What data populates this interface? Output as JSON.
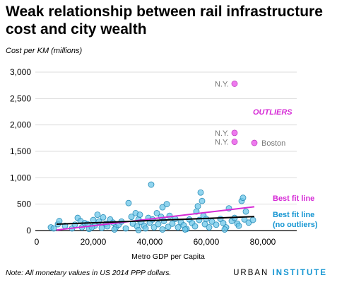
{
  "header": {
    "title": "Weak relationship between rail infrastructure cost and city wealth",
    "note": "Note: All monetary values in US 2014 PPP dollars.",
    "brand_part1": "URBAN",
    "brand_part2": "INSTITUTE"
  },
  "colors": {
    "points": "#6cc7ea",
    "points_stroke": "#2a8db8",
    "outliers": "#ee7aee",
    "outliers_stroke": "#c03ec0",
    "fit_all": "#d62bd6",
    "fit_no_outliers": "#000000",
    "axis_text": "#000000",
    "grid": "#dddddd"
  },
  "chart_data": {
    "type": "scatter",
    "title": "Weak relationship between rail infrastructure cost and city wealth",
    "xlabel": "Metro GDP per Capita",
    "ylabel": "Cost per KM (millions)",
    "xlim": [
      0,
      85000
    ],
    "ylim": [
      0,
      3000
    ],
    "x_ticks": [
      0,
      20000,
      40000,
      60000,
      80000
    ],
    "x_tick_labels": [
      "0",
      "20,000",
      "40,000",
      "60,000",
      "80,000"
    ],
    "y_ticks": [
      0,
      500,
      1000,
      1500,
      2000,
      2500,
      3000
    ],
    "y_tick_labels": [
      "0",
      "500",
      "1,000",
      "1,500",
      "2,000",
      "2,500",
      "3,000"
    ],
    "grid": "horizontal",
    "outliers_label": "OUTLIERS",
    "series": [
      {
        "kind": "points",
        "points": [
          [
            5000,
            60
          ],
          [
            7500,
            120
          ],
          [
            8000,
            180
          ],
          [
            10000,
            90
          ],
          [
            12500,
            40
          ],
          [
            13500,
            110
          ],
          [
            14500,
            240
          ],
          [
            15500,
            180
          ],
          [
            16000,
            60
          ],
          [
            17000,
            140
          ],
          [
            18000,
            120
          ],
          [
            18500,
            30
          ],
          [
            20000,
            200
          ],
          [
            20500,
            90
          ],
          [
            21500,
            300
          ],
          [
            22000,
            170
          ],
          [
            23000,
            50
          ],
          [
            23500,
            250
          ],
          [
            24500,
            130
          ],
          [
            25000,
            80
          ],
          [
            26000,
            210
          ],
          [
            27000,
            150
          ],
          [
            28000,
            60
          ],
          [
            29000,
            110
          ],
          [
            30000,
            170
          ],
          [
            31500,
            40
          ],
          [
            32500,
            520
          ],
          [
            33500,
            260
          ],
          [
            34000,
            130
          ],
          [
            35000,
            330
          ],
          [
            35500,
            80
          ],
          [
            36000,
            210
          ],
          [
            36500,
            300
          ],
          [
            37000,
            160
          ],
          [
            38000,
            90
          ],
          [
            38500,
            40
          ],
          [
            39500,
            240
          ],
          [
            40000,
            150
          ],
          [
            40500,
            870
          ],
          [
            41000,
            210
          ],
          [
            41500,
            60
          ],
          [
            42500,
            330
          ],
          [
            43000,
            120
          ],
          [
            44000,
            260
          ],
          [
            44500,
            440
          ],
          [
            45000,
            180
          ],
          [
            46000,
            500
          ],
          [
            46500,
            70
          ],
          [
            47000,
            280
          ],
          [
            48000,
            130
          ],
          [
            49000,
            220
          ],
          [
            50000,
            60
          ],
          [
            51000,
            160
          ],
          [
            52000,
            100
          ],
          [
            53000,
            30
          ],
          [
            54000,
            210
          ],
          [
            55000,
            140
          ],
          [
            56000,
            80
          ],
          [
            56500,
            360
          ],
          [
            57000,
            460
          ],
          [
            57500,
            200
          ],
          [
            58000,
            720
          ],
          [
            58500,
            560
          ],
          [
            59000,
            280
          ],
          [
            59500,
            120
          ],
          [
            60000,
            220
          ],
          [
            61000,
            60
          ],
          [
            62000,
            170
          ],
          [
            63500,
            110
          ],
          [
            65000,
            220
          ],
          [
            66000,
            140
          ],
          [
            67000,
            60
          ],
          [
            68000,
            420
          ],
          [
            69000,
            180
          ],
          [
            70000,
            240
          ],
          [
            71000,
            130
          ],
          [
            71500,
            90
          ],
          [
            72500,
            560
          ],
          [
            73000,
            620
          ],
          [
            73500,
            210
          ],
          [
            74000,
            360
          ],
          [
            75000,
            150
          ],
          [
            76500,
            200
          ],
          [
            6000,
            40
          ],
          [
            19500,
            60
          ],
          [
            27500,
            20
          ],
          [
            36000,
            10
          ],
          [
            44500,
            20
          ],
          [
            52500,
            20
          ],
          [
            66500,
            20
          ]
        ]
      },
      {
        "kind": "outliers",
        "points": [
          [
            70000,
            2780
          ],
          [
            70000,
            1850
          ],
          [
            70000,
            1680
          ],
          [
            77000,
            1660
          ]
        ]
      },
      {
        "kind": "fit",
        "name": "Best fit line",
        "x": [
          7000,
          77000
        ],
        "y": [
          10,
          450
        ]
      },
      {
        "kind": "fit",
        "name": "Best fit line (no outliers)",
        "x": [
          7000,
          77000
        ],
        "y": [
          120,
          265
        ]
      }
    ],
    "annotations": [
      {
        "text": "N.Y.",
        "x": 70000,
        "y": 2780,
        "side": "left"
      },
      {
        "text": "N.Y.",
        "x": 70000,
        "y": 1850,
        "side": "left"
      },
      {
        "text": "N.Y.",
        "x": 70000,
        "y": 1680,
        "side": "left"
      },
      {
        "text": "Boston",
        "x": 77000,
        "y": 1660,
        "side": "right"
      }
    ],
    "fit_labels": {
      "all": "Best fit line",
      "no_outliers_line1": "Best fit line",
      "no_outliers_line2": "(no outliers)"
    }
  }
}
